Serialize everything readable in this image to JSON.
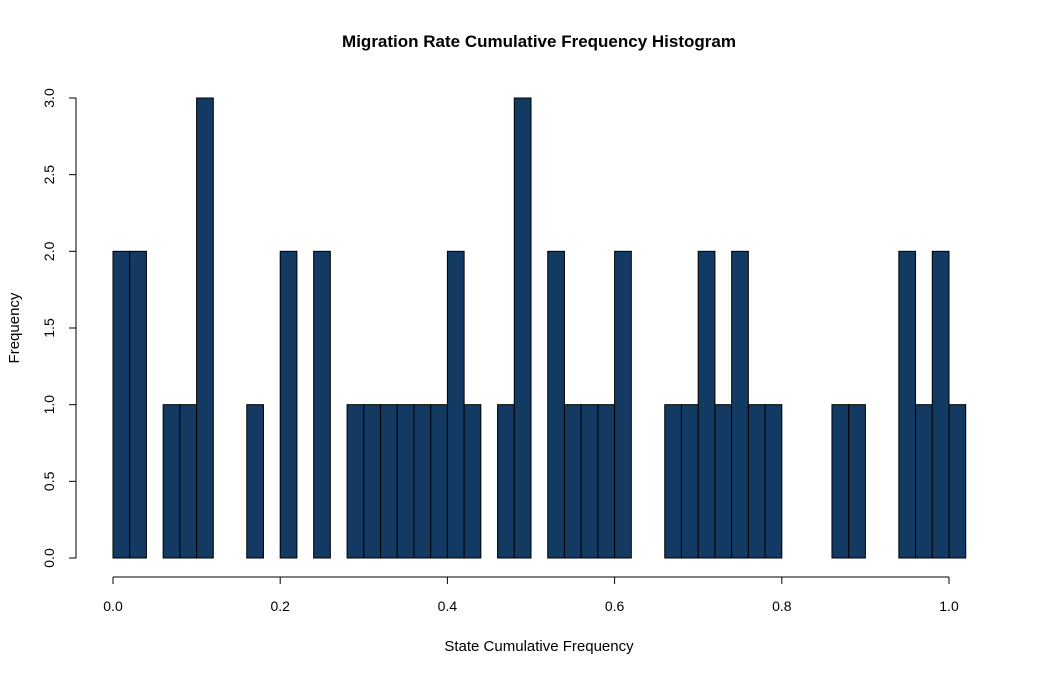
{
  "chart_data": {
    "type": "bar",
    "title": "Migration Rate Cumulative Frequency Histogram",
    "xlabel": "State Cumulative Frequency",
    "ylabel": "Frequency",
    "xlim": [
      0.0,
      1.0
    ],
    "ylim": [
      0.0,
      3.0
    ],
    "x_ticks": [
      "0.0",
      "0.2",
      "0.4",
      "0.6",
      "0.8",
      "1.0"
    ],
    "y_ticks": [
      "0.0",
      "0.5",
      "1.0",
      "1.5",
      "2.0",
      "2.5",
      "3.0"
    ],
    "bin_width": 0.02,
    "bin_starts": [
      0.0,
      0.02,
      0.04,
      0.06,
      0.08,
      0.1,
      0.12,
      0.14,
      0.16,
      0.18,
      0.2,
      0.22,
      0.24,
      0.26,
      0.28,
      0.3,
      0.32,
      0.34,
      0.36,
      0.38,
      0.4,
      0.42,
      0.44,
      0.46,
      0.48,
      0.5,
      0.52,
      0.54,
      0.56,
      0.58,
      0.6,
      0.62,
      0.64,
      0.66,
      0.68,
      0.7,
      0.72,
      0.74,
      0.76,
      0.78,
      0.8,
      0.82,
      0.84,
      0.86,
      0.88,
      0.9,
      0.92,
      0.94,
      0.96,
      0.98,
      1.0
    ],
    "values": [
      2,
      2,
      0,
      1,
      1,
      3,
      0,
      0,
      1,
      0,
      2,
      0,
      2,
      0,
      1,
      1,
      1,
      1,
      1,
      1,
      2,
      1,
      0,
      1,
      3,
      0,
      2,
      1,
      1,
      1,
      2,
      0,
      0,
      1,
      1,
      2,
      1,
      2,
      1,
      1,
      0,
      0,
      0,
      1,
      1,
      0,
      0,
      2,
      1,
      2,
      1
    ],
    "bar_color": "#123a62",
    "grid": false
  }
}
